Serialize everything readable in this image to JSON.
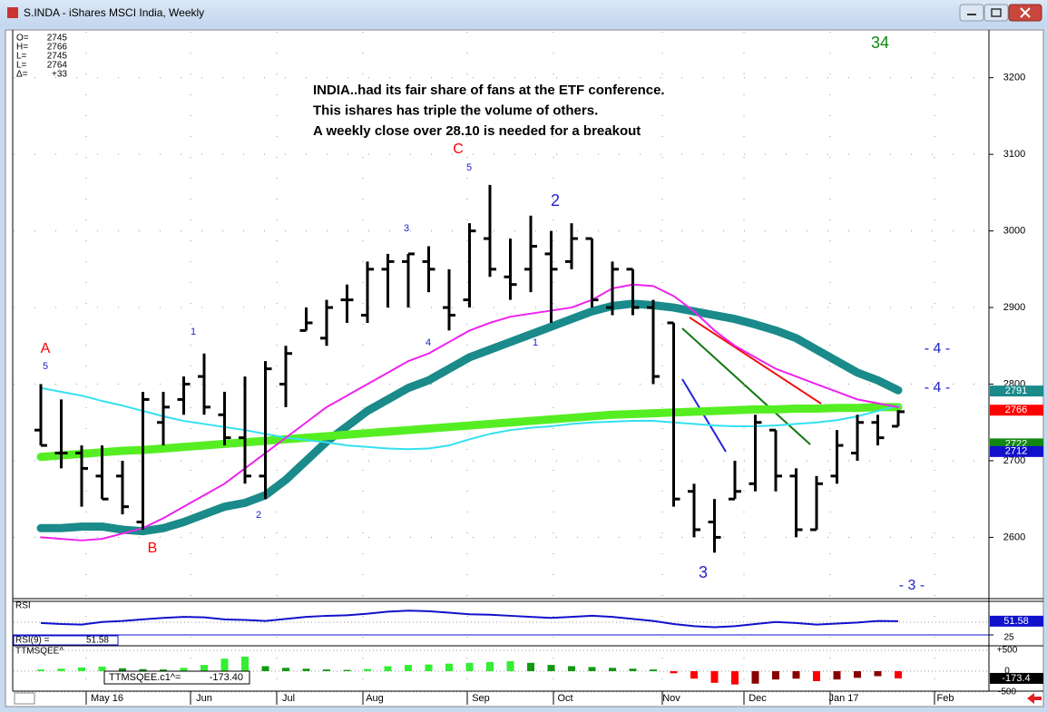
{
  "window": {
    "title": "S.INDA - iShares MSCI India, Weekly"
  },
  "chart_data": {
    "type": "ohlc",
    "info": [
      {
        "label": "O=",
        "value": 2745
      },
      {
        "label": "H=",
        "value": 2766
      },
      {
        "label": "L=",
        "value": 2745
      },
      {
        "label": "L=",
        "value": 2764
      },
      {
        "label": "Δ=",
        "value": {
          "value": 33,
          "label": "+33"
        }
      }
    ],
    "text_block": [
      "INDIA..had its fair share of fans at the ETF conference.",
      "This ishares has triple the volume of others.",
      "A weekly close over 28.10 is needed for a breakout"
    ],
    "months": [
      "May 16",
      "Jun",
      "Jul",
      "Aug",
      "Sep",
      "Oct",
      "Nov",
      "Dec",
      "Jan 17",
      "Feb"
    ],
    "ylim": [
      2520,
      3260
    ],
    "yticks": [
      2600,
      2700,
      2800,
      2900,
      3000,
      3100,
      3200
    ],
    "open": [
      2740,
      2710,
      2710,
      2680,
      2680,
      2620,
      2750,
      2780,
      2810,
      2760,
      2730,
      2680,
      2800,
      2870,
      2860,
      2910,
      2890,
      2950,
      2960,
      2960,
      2900,
      2910,
      2990,
      2940,
      2950,
      2970,
      2960,
      2990,
      2900,
      2950,
      2900,
      2880,
      2660,
      2620,
      2650,
      2670,
      2740,
      2680,
      2610,
      2680,
      2710,
      2750,
      2745
    ],
    "high": [
      2800,
      2780,
      2720,
      2720,
      2700,
      2790,
      2790,
      2810,
      2840,
      2790,
      2810,
      2830,
      2850,
      2900,
      2910,
      2930,
      2960,
      2970,
      2970,
      2980,
      2950,
      3010,
      3060,
      2990,
      3020,
      3000,
      3010,
      2990,
      2960,
      2950,
      2910,
      2880,
      2670,
      2650,
      2700,
      2760,
      2740,
      2690,
      2680,
      2740,
      2760,
      2760,
      2766
    ],
    "low": [
      2720,
      2690,
      2640,
      2650,
      2630,
      2610,
      2720,
      2760,
      2760,
      2720,
      2670,
      2650,
      2770,
      2870,
      2850,
      2880,
      2880,
      2900,
      2900,
      2920,
      2870,
      2900,
      2940,
      2910,
      2920,
      2880,
      2950,
      2900,
      2890,
      2890,
      2800,
      2640,
      2600,
      2580,
      2650,
      2660,
      2660,
      2600,
      2610,
      2670,
      2700,
      2720,
      2745
    ],
    "close": [
      2720,
      2710,
      2690,
      2650,
      2640,
      2780,
      2770,
      2800,
      2770,
      2730,
      2680,
      2820,
      2840,
      2880,
      2900,
      2910,
      2950,
      2960,
      2970,
      2950,
      2890,
      3000,
      2950,
      2930,
      2980,
      2950,
      2990,
      2910,
      2950,
      2900,
      2810,
      2650,
      2610,
      2600,
      2660,
      2750,
      2680,
      2610,
      2670,
      2720,
      2750,
      2730,
      2764
    ],
    "bar_color": "#000000",
    "series": [
      {
        "color": "#1a8a8a",
        "width": 9,
        "values": [
          2612,
          2612,
          2614,
          2614,
          2610,
          2608,
          2612,
          2620,
          2630,
          2640,
          2645,
          2655,
          2675,
          2700,
          2725,
          2745,
          2765,
          2780,
          2795,
          2805,
          2820,
          2835,
          2845,
          2855,
          2865,
          2875,
          2885,
          2895,
          2902,
          2905,
          2903,
          2900,
          2895,
          2890,
          2885,
          2878,
          2870,
          2860,
          2845,
          2830,
          2815,
          2805,
          2792
        ]
      },
      {
        "color": "#55ee22",
        "width": 9,
        "values": [
          2705,
          2707,
          2709,
          2711,
          2713,
          2714,
          2716,
          2718,
          2720,
          2722,
          2724,
          2726,
          2728,
          2730,
          2732,
          2734,
          2736,
          2738,
          2740,
          2742,
          2744,
          2746,
          2748,
          2750,
          2752,
          2754,
          2756,
          2758,
          2760,
          2761,
          2762,
          2763,
          2764,
          2765,
          2766,
          2767,
          2767,
          2768,
          2768,
          2769,
          2769,
          2770,
          2770
        ]
      },
      {
        "color": "#33e0f0",
        "width": 2,
        "values": [
          2795,
          2790,
          2785,
          2778,
          2772,
          2765,
          2758,
          2752,
          2748,
          2744,
          2740,
          2735,
          2730,
          2727,
          2724,
          2720,
          2718,
          2716,
          2715,
          2716,
          2720,
          2728,
          2735,
          2740,
          2743,
          2745,
          2748,
          2750,
          2751,
          2752,
          2752,
          2750,
          2748,
          2746,
          2745,
          2745,
          2746,
          2748,
          2750,
          2753,
          2758,
          2765,
          2772
        ]
      },
      {
        "color": "#ee22ee",
        "width": 2,
        "values": [
          2600,
          2598,
          2596,
          2598,
          2605,
          2612,
          2625,
          2640,
          2655,
          2670,
          2690,
          2710,
          2730,
          2750,
          2770,
          2785,
          2800,
          2815,
          2830,
          2840,
          2855,
          2870,
          2880,
          2888,
          2892,
          2896,
          2900,
          2910,
          2925,
          2930,
          2928,
          2915,
          2895,
          2870,
          2850,
          2835,
          2820,
          2810,
          2800,
          2790,
          2780,
          2775,
          2770
        ]
      }
    ],
    "badges": [
      {
        "value": 2791,
        "color": "#1a8a8a"
      },
      {
        "value": 2766,
        "color": "#ff0000"
      },
      {
        "value": 2722,
        "color": "#118811"
      },
      {
        "value": 2712,
        "color": "#1111cc"
      }
    ],
    "annotations": [
      {
        "text": "A",
        "color": "#ff0000"
      },
      {
        "text": "5",
        "color": "#2222cc"
      },
      {
        "text": "B",
        "color": "#ff0000"
      },
      {
        "text": "1",
        "color": "#2222cc"
      },
      {
        "text": "2",
        "color": "#2222cc"
      },
      {
        "text": "3",
        "color": "#2222cc"
      },
      {
        "text": "4",
        "color": "#2222cc"
      },
      {
        "text": "C",
        "color": "#ff0000"
      },
      {
        "text": "5",
        "color": "#2222cc"
      },
      {
        "text": "2",
        "color": "#2222cc"
      },
      {
        "text": "1",
        "color": "#2222cc"
      },
      {
        "text": "3",
        "color": "#2222cc"
      },
      {
        "text": "- 4 -",
        "color": "#2222cc"
      },
      {
        "text": "- 4 -",
        "color": "#2222cc"
      },
      {
        "text": "- 3 -",
        "color": "#2222cc"
      },
      {
        "text": "34",
        "color": "#118811"
      }
    ],
    "rsi": {
      "label": "RSI",
      "readout": "RSI(9) =",
      "color": "#1111cc",
      "ylim": [
        25,
        90
      ],
      "yticks": [
        25
      ],
      "values": [
        48,
        46,
        45,
        50,
        52,
        55,
        58,
        60,
        59,
        55,
        54,
        52,
        56,
        60,
        62,
        63,
        66,
        70,
        72,
        71,
        68,
        65,
        64,
        62,
        60,
        58,
        60,
        62,
        60,
        56,
        52,
        46,
        42,
        40,
        42,
        46,
        50,
        48,
        45,
        47,
        49,
        52,
        51.58
      ]
    },
    "ttm": {
      "label": "TTMSQEE^",
      "readout": "TTMSQEE.c1^=",
      "readout_value": {
        "value": -173.4,
        "label": "-173.40"
      },
      "colors": {
        "up_rising": "#33ee33",
        "up_falling": "#119911",
        "down_falling": "#ff0000",
        "down_rising": "#880000"
      },
      "ylim": [
        -480,
        610
      ],
      "yticks": [
        {
          "value": 500,
          "label": "+500"
        },
        0,
        -500
      ],
      "values": [
        40,
        60,
        90,
        110,
        70,
        50,
        40,
        80,
        150,
        300,
        350,
        120,
        80,
        60,
        40,
        30,
        50,
        120,
        150,
        160,
        180,
        200,
        220,
        240,
        200,
        150,
        120,
        100,
        80,
        60,
        40,
        -50,
        -180,
        -280,
        -320,
        -300,
        -200,
        -180,
        -240,
        -200,
        -160,
        -120,
        -173.4
      ]
    }
  }
}
